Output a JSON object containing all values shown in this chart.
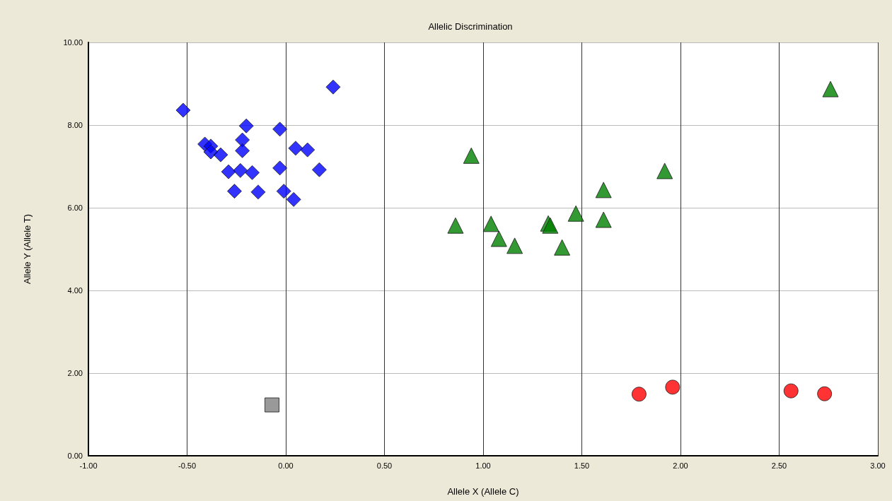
{
  "chart_data": {
    "type": "scatter",
    "title": "Allelic Discrimination",
    "xlabel": "Allele X (Allele C)",
    "ylabel": "Allele Y (Allele T)",
    "xlim": [
      -1,
      3
    ],
    "xticks": [
      {
        "value": -1,
        "label": "-1.00"
      },
      {
        "value": -0.5,
        "label": "-0.50"
      },
      {
        "value": 0,
        "label": "0.00"
      },
      {
        "value": 0.5,
        "label": "0.50"
      },
      {
        "value": 1,
        "label": "1.00"
      },
      {
        "value": 1.5,
        "label": "1.50"
      },
      {
        "value": 2,
        "label": "2.00"
      },
      {
        "value": 2.5,
        "label": "2.50"
      },
      {
        "value": 3,
        "label": "3.00"
      }
    ],
    "ylim": [
      0,
      10
    ],
    "yticks": [
      {
        "value": 0,
        "label": "0.00"
      },
      {
        "value": 2,
        "label": "2.00"
      },
      {
        "value": 4,
        "label": "4.00"
      },
      {
        "value": 6,
        "label": "6.00"
      },
      {
        "value": 8,
        "label": "8.00"
      },
      {
        "value": 10,
        "label": "10.00"
      }
    ],
    "grid": true,
    "series": [
      {
        "color": "#0000ff",
        "marker": "diamond",
        "x": [
          -0.52,
          0.24,
          -0.41,
          -0.38,
          -0.38,
          -0.33,
          -0.2,
          -0.22,
          -0.22,
          -0.03,
          0.05,
          0.11,
          -0.29,
          -0.23,
          -0.17,
          -0.03,
          0.17,
          -0.26,
          -0.14,
          -0.01,
          0.04
        ],
        "values": [
          8.36,
          8.92,
          7.54,
          7.49,
          7.35,
          7.28,
          7.98,
          7.64,
          7.38,
          7.9,
          7.44,
          7.4,
          6.87,
          6.9,
          6.85,
          6.96,
          6.92,
          6.4,
          6.38,
          6.4,
          6.2
        ]
      },
      {
        "color": "#008000",
        "marker": "triangle",
        "x": [
          2.76,
          0.94,
          1.92,
          1.61,
          1.61,
          1.47,
          0.86,
          1.04,
          1.08,
          1.16,
          1.33,
          1.34,
          1.4
        ],
        "values": [
          8.87,
          7.26,
          6.89,
          6.43,
          5.71,
          5.86,
          5.57,
          5.61,
          5.25,
          5.08,
          5.62,
          5.57,
          5.04
        ]
      },
      {
        "color": "#ff0000",
        "marker": "circle",
        "x": [
          1.79,
          1.96,
          2.56,
          2.73
        ],
        "values": [
          1.49,
          1.66,
          1.57,
          1.5
        ]
      },
      {
        "color": "#808080",
        "marker": "square",
        "x": [
          -0.07
        ],
        "values": [
          1.23
        ]
      }
    ]
  }
}
